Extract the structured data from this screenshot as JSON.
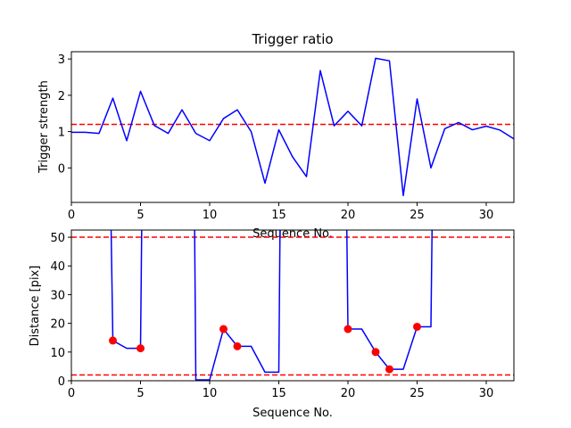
{
  "chart_data": [
    {
      "type": "line",
      "title": "Trigger ratio",
      "xlabel": "Sequence No.",
      "ylabel": "Trigger strength",
      "xlim": [
        0,
        32
      ],
      "ylim": [
        -0.95,
        3.2
      ],
      "x_ticks": [
        0,
        5,
        10,
        15,
        20,
        25,
        30
      ],
      "y_ticks": [
        0,
        1,
        2,
        3
      ],
      "grid": false,
      "series": [
        {
          "color": "#0000ff",
          "x": [
            0,
            1,
            2,
            3,
            4,
            5,
            6,
            7,
            8,
            9,
            10,
            11,
            12,
            13,
            14,
            15,
            16,
            17,
            18,
            19,
            20,
            21,
            22,
            23,
            24,
            25,
            26,
            27,
            28,
            29,
            30,
            31,
            32
          ],
          "values": [
            0.98,
            0.98,
            0.95,
            1.92,
            0.75,
            2.11,
            1.17,
            0.95,
            1.6,
            0.95,
            0.75,
            1.36,
            1.6,
            1.0,
            -0.42,
            1.05,
            0.3,
            -0.24,
            2.68,
            1.16,
            1.56,
            1.16,
            3.02,
            2.95,
            -0.76,
            1.9,
            0.0,
            1.08,
            1.25,
            1.05,
            1.15,
            1.04,
            0.8
          ]
        }
      ],
      "hlines": [
        {
          "y": 1.2,
          "color": "#ff0000",
          "style": "dashed"
        }
      ]
    },
    {
      "type": "line",
      "title": "",
      "xlabel": "Sequence No.",
      "ylabel": "Distance [pix]",
      "xlim": [
        0,
        32
      ],
      "ylim": [
        0,
        52.5
      ],
      "x_ticks": [
        0,
        5,
        10,
        15,
        20,
        25,
        30
      ],
      "y_ticks": [
        0,
        10,
        20,
        30,
        40,
        50
      ],
      "grid": false,
      "series": [
        {
          "color": "#0000ff",
          "segments": [
            [
              [
                2.85,
                60
              ],
              [
                3,
                14
              ],
              [
                4,
                11.3
              ],
              [
                5,
                11.3
              ],
              [
                5.1,
                60
              ]
            ],
            [
              [
                8.9,
                60
              ],
              [
                9,
                0.3
              ],
              [
                10,
                0.3
              ],
              [
                11,
                18
              ],
              [
                12,
                12
              ],
              [
                13,
                12
              ],
              [
                14,
                3
              ],
              [
                15,
                3
              ],
              [
                15.1,
                60
              ]
            ],
            [
              [
                19.9,
                60
              ],
              [
                20,
                18
              ],
              [
                21,
                18
              ],
              [
                22,
                10
              ],
              [
                23,
                4
              ],
              [
                24,
                4
              ],
              [
                25,
                18.8
              ],
              [
                26,
                18.8
              ],
              [
                26.1,
                60
              ]
            ]
          ]
        }
      ],
      "points": {
        "color": "#ff0000",
        "x": [
          3,
          5,
          11,
          12,
          20,
          22,
          23,
          25
        ],
        "y": [
          14,
          11.3,
          18,
          12,
          18,
          10,
          4,
          18.8
        ]
      },
      "hlines": [
        {
          "y": 50,
          "color": "#ff0000",
          "style": "dashed"
        },
        {
          "y": 2,
          "color": "#ff0000",
          "style": "dashed"
        }
      ]
    }
  ]
}
